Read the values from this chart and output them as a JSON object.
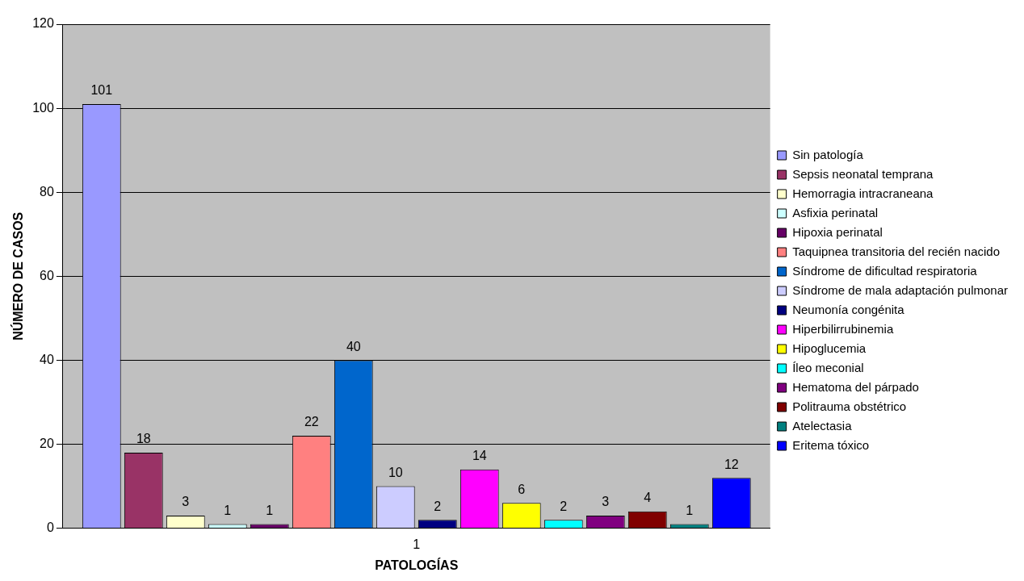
{
  "chart_data": {
    "type": "bar",
    "xlabel": "PATOLOGÍAS",
    "ylabel": "NÚMERO DE CASOS",
    "categories": [
      "1"
    ],
    "ylim": [
      0,
      120
    ],
    "yticks": [
      0,
      20,
      40,
      60,
      80,
      100,
      120
    ],
    "grid": "y",
    "legend": "right",
    "data_labels": true,
    "series": [
      {
        "name": "Sin patología",
        "color": "#9999ff",
        "values": [
          101
        ]
      },
      {
        "name": "Sepsis neonatal temprana",
        "color": "#993366",
        "values": [
          18
        ]
      },
      {
        "name": "Hemorragia intracraneana",
        "color": "#ffffcc",
        "values": [
          3
        ]
      },
      {
        "name": "Asfixia perinatal",
        "color": "#ccffff",
        "values": [
          1
        ]
      },
      {
        "name": "Hipoxia perinatal",
        "color": "#660066",
        "values": [
          1
        ]
      },
      {
        "name": "Taquipnea transitoria del recién nacido",
        "color": "#ff8080",
        "values": [
          22
        ]
      },
      {
        "name": "Síndrome de dificultad respiratoria",
        "color": "#0066cc",
        "values": [
          40
        ]
      },
      {
        "name": "Síndrome de mala adaptación pulmonar",
        "color": "#ccccff",
        "values": [
          10
        ]
      },
      {
        "name": "Neumonía congénita",
        "color": "#000080",
        "values": [
          2
        ]
      },
      {
        "name": "Hiperbilirrubinemia",
        "color": "#ff00ff",
        "values": [
          14
        ]
      },
      {
        "name": "Hipoglucemia",
        "color": "#ffff00",
        "values": [
          6
        ]
      },
      {
        "name": "Íleo meconial",
        "color": "#00ffff",
        "values": [
          2
        ]
      },
      {
        "name": "Hematoma del párpado",
        "color": "#800080",
        "values": [
          3
        ]
      },
      {
        "name": "Politrauma obstétrico",
        "color": "#800000",
        "values": [
          4
        ]
      },
      {
        "name": "Atelectasia",
        "color": "#008080",
        "values": [
          1
        ]
      },
      {
        "name": "Eritema tóxico",
        "color": "#0000ff",
        "values": [
          12
        ]
      }
    ]
  }
}
